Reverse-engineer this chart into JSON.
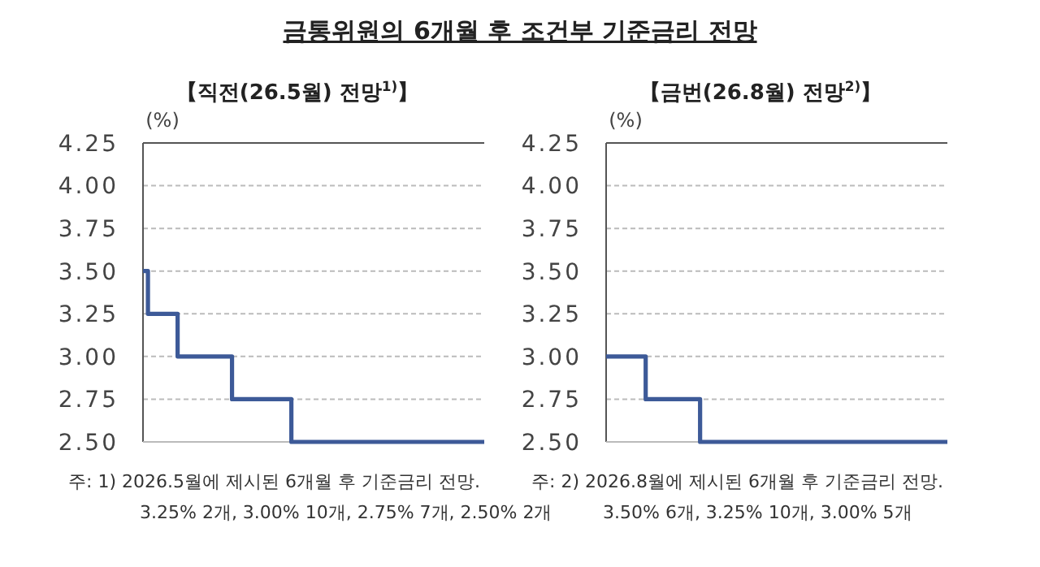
{
  "chart_data": [
    {
      "type": "step",
      "title": "금통위원의 6개월 후 조건부 기준금리 전망",
      "subtitle": "【직전(26.5월) 전망$^{1)}$】",
      "ylabel": "(%)",
      "categories": [
        null,
        null,
        null,
        null,
        null,
        null,
        null,
        null,
        null,
        null,
        null,
        null,
        null,
        null,
        null,
        null,
        null,
        null,
        null,
        null,
        null,
        null,
        null,
        null,
        null,
        null,
        null,
        null,
        null,
        null,
        null,
        null,
        null,
        null,
        null,
        null,
        null,
        null,
        null,
        null,
        null,
        null,
        null,
        null,
        null,
        null,
        null,
        null,
        null,
        null,
        null,
        null,
        null,
        null,
        null,
        null,
        null,
        null,
        null,
        null,
        null,
        null,
        null,
        null,
        null,
        null,
        null,
        null,
        null,
        null
      ],
      "values": [
        3.5,
        3.25,
        3.25,
        3.25,
        3.25,
        3.25,
        3.25,
        3.0,
        3.0,
        3.0,
        3.0,
        3.0,
        3.0,
        3.0,
        3.0,
        3.0,
        3.0,
        3.0,
        2.75,
        2.75,
        2.75,
        2.75,
        2.75,
        2.75,
        2.75,
        2.75,
        2.75,
        2.75,
        2.75,
        2.75,
        2.5,
        2.5,
        2.5,
        2.5,
        2.5,
        2.5,
        2.5,
        2.5,
        2.5,
        2.5,
        2.5,
        2.5,
        2.5,
        2.5,
        2.5,
        2.5,
        2.5,
        2.5,
        2.5,
        2.5,
        2.5,
        2.5,
        2.5,
        2.5,
        2.5,
        2.5,
        2.5,
        2.5,
        2.5,
        2.5,
        2.5,
        2.5,
        2.5,
        2.5,
        2.5,
        2.5,
        2.5,
        2.5,
        2.5,
        2.5
      ],
      "color": "#3d5a98",
      "line_style": "solid",
      "ylim": [
        2.5,
        4.25
      ],
      "yticks": [
        {
          "value": 2.5,
          "label": "2.50"
        },
        {
          "value": 2.75,
          "label": "2.75"
        },
        {
          "value": 3.0,
          "label": "3.00"
        },
        {
          "value": 3.25,
          "label": "3.25"
        },
        {
          "value": 3.5,
          "label": "3.50"
        },
        {
          "value": 3.75,
          "label": "3.75"
        },
        {
          "value": 4.0,
          "label": "4.00"
        },
        {
          "value": 4.25,
          "label": "4.25"
        }
      ],
      "grid": "y",
      "tick_labels": "y",
      "annotations": [
        "주: 1) 2026.5월에 제시된 6개월 후 기준금리 전망.",
        "3.25% 2개, 3.00% 10개, 2.75% 7개, 2.50% 2개"
      ]
    },
    {
      "type": "step",
      "subtitle": "【금번(26.8월) 전망$^{2)}$】",
      "ylabel": "(%)",
      "categories": [
        null,
        null,
        null,
        null,
        null,
        null,
        null,
        null,
        null,
        null,
        null,
        null,
        null,
        null,
        null,
        null,
        null,
        null,
        null,
        null,
        null,
        null,
        null,
        null,
        null,
        null,
        null,
        null,
        null,
        null,
        null,
        null,
        null,
        null,
        null,
        null,
        null,
        null,
        null,
        null,
        null,
        null,
        null,
        null,
        null,
        null,
        null,
        null,
        null,
        null,
        null,
        null,
        null,
        null,
        null,
        null,
        null,
        null,
        null,
        null,
        null,
        null,
        null,
        null,
        null,
        null,
        null,
        null,
        null,
        null
      ],
      "values": [
        3.0,
        3.0,
        3.0,
        3.0,
        3.0,
        3.0,
        3.0,
        3.0,
        2.75,
        2.75,
        2.75,
        2.75,
        2.75,
        2.75,
        2.75,
        2.75,
        2.75,
        2.75,
        2.75,
        2.5,
        2.5,
        2.5,
        2.5,
        2.5,
        2.5,
        2.5,
        2.5,
        2.5,
        2.5,
        2.5,
        2.5,
        2.5,
        2.5,
        2.5,
        2.5,
        2.5,
        2.5,
        2.5,
        2.5,
        2.5,
        2.5,
        2.5,
        2.5,
        2.5,
        2.5,
        2.5,
        2.5,
        2.5,
        2.5,
        2.5,
        2.5,
        2.5,
        2.5,
        2.5,
        2.5,
        2.5,
        2.5,
        2.5,
        2.5,
        2.5,
        2.5,
        2.5,
        2.5,
        2.5,
        2.5,
        2.5,
        2.5,
        2.5,
        2.5,
        2.5
      ],
      "color": "#3d5a98",
      "line_style": "solid",
      "ylim": [
        2.5,
        4.25
      ],
      "yticks": [
        {
          "value": 2.5,
          "label": "2.50"
        },
        {
          "value": 2.75,
          "label": "2.75"
        },
        {
          "value": 3.0,
          "label": "3.00"
        },
        {
          "value": 3.25,
          "label": "3.25"
        },
        {
          "value": 3.5,
          "label": "3.50"
        },
        {
          "value": 3.75,
          "label": "3.75"
        },
        {
          "value": 4.0,
          "label": "4.00"
        },
        {
          "value": 4.25,
          "label": "4.25"
        }
      ],
      "grid": "y",
      "tick_labels": "y",
      "annotations": [
        "주: 2) 2026.8월에 제시된 6개월 후 기준금리 전망.",
        "3.50% 6개, 3.25% 10개, 3.00% 5개"
      ]
    }
  ]
}
